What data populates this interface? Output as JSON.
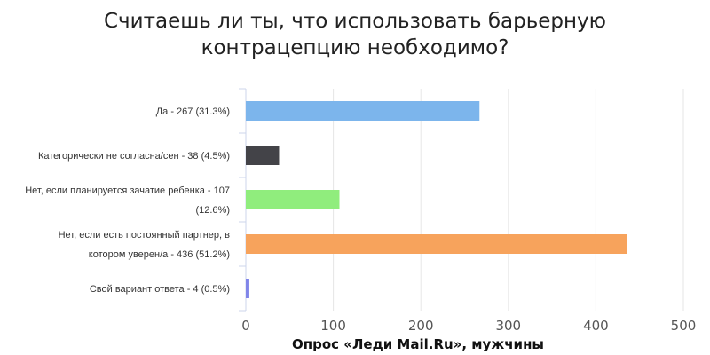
{
  "chart_data": {
    "type": "bar",
    "orientation": "horizontal",
    "title_lines": [
      "Считаешь ли ты, что использовать барьерную",
      "контрацепцию необходимо?"
    ],
    "categories": [
      [
        "Да - 267 (31.3%)"
      ],
      [
        "Категорически не согласна/сен - 38 (4.5%)"
      ],
      [
        "Нет, если планируется зачатие ребенка - 107",
        "(12.6%)"
      ],
      [
        "Нет, если есть постоянный партнер, в",
        "котором уверен/а - 436 (51.2%)"
      ],
      [
        "Свой вариант ответа - 4 (0.5%)"
      ]
    ],
    "values": [
      267,
      38,
      107,
      436,
      4
    ],
    "colors": [
      "#7cb5ec",
      "#434348",
      "#90ed7d",
      "#f7a35c",
      "#8085e9"
    ],
    "xlim": [
      0,
      500
    ],
    "ticks": [
      0,
      100,
      200,
      300,
      400,
      500
    ],
    "xlabel": "Опрос «Леди Mail.Ru», мужчины",
    "grid": true
  }
}
